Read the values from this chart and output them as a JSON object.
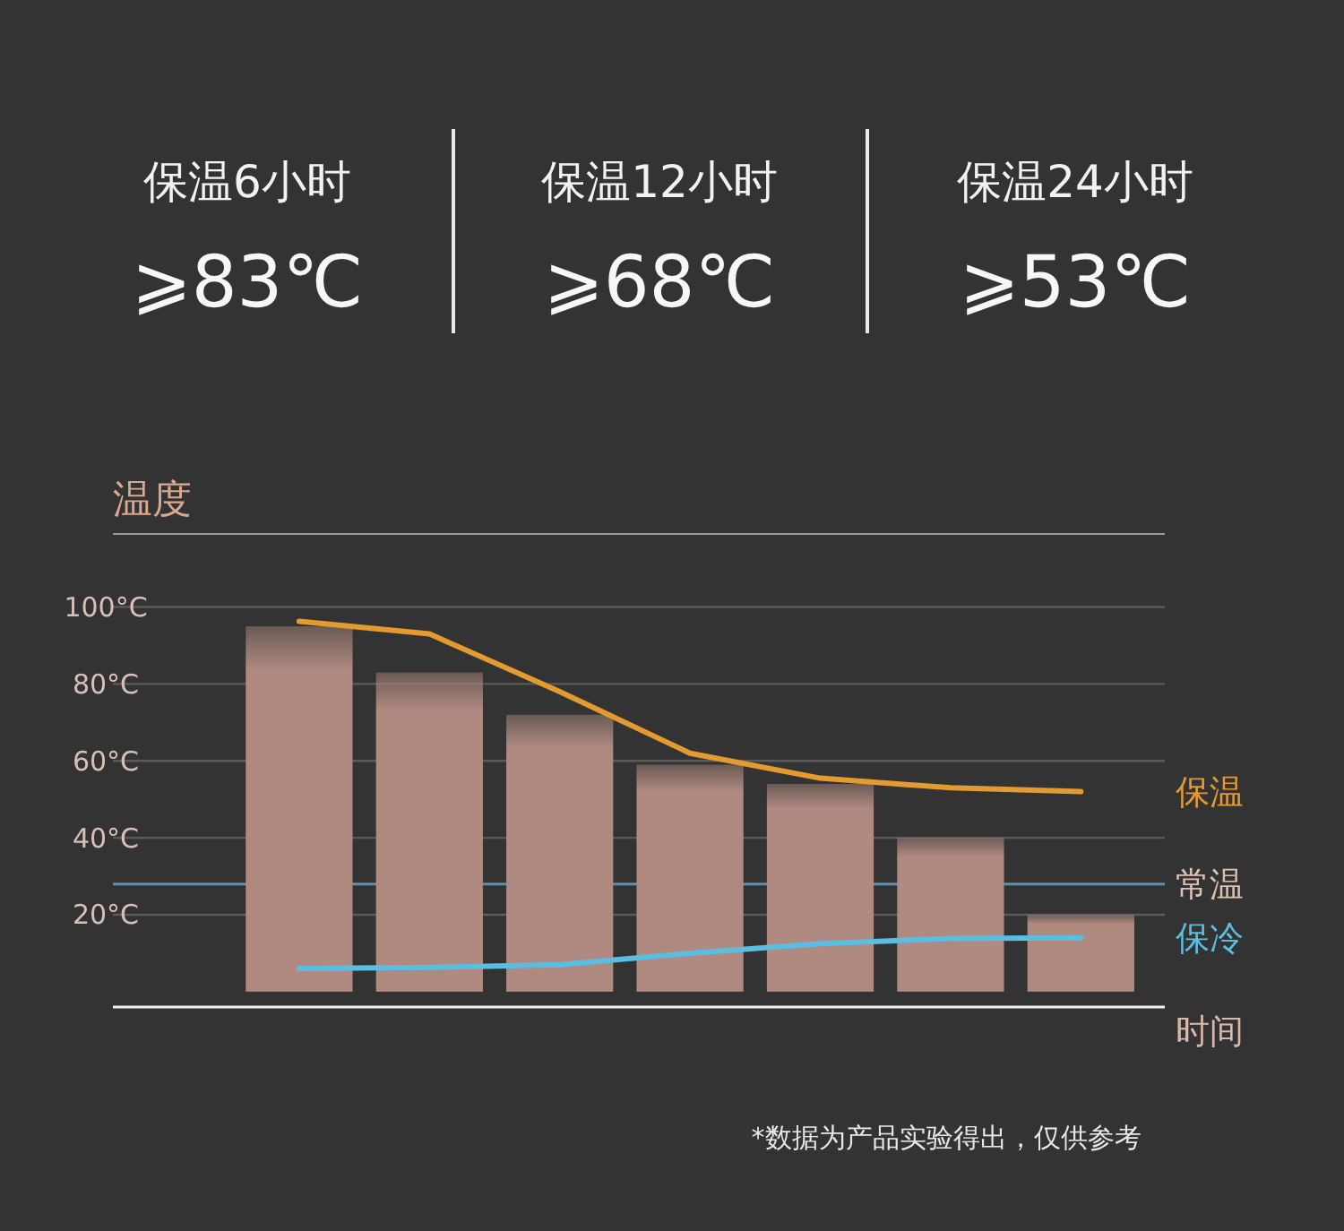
{
  "chart_data": {
    "type": "bar",
    "ylabel": "温度",
    "xlabel": "时间",
    "annotations": [
      "保温6小时",
      "⩾83℃",
      "保温12小时",
      "⩾68℃",
      "保温24小时",
      "⩾53℃",
      "*数据为产品实验得出，仅供参考"
    ],
    "categories": [
      null,
      null,
      null,
      null,
      null,
      null,
      null
    ],
    "ylim": [
      -4,
      119
    ],
    "yticks": [
      {
        "value": 20,
        "label": "20°C"
      },
      {
        "value": 40,
        "label": "40°C"
      },
      {
        "value": 60,
        "label": "60°C"
      },
      {
        "value": 80,
        "label": "80°C"
      },
      {
        "value": 100,
        "label": "100°C"
      }
    ],
    "tick_labels": "y",
    "grid": "y",
    "legend": "right",
    "series": [
      {
        "color": "#b08a80",
        "values": [
          95,
          83,
          72,
          59,
          54,
          40,
          20
        ]
      },
      {
        "type": "line",
        "name": "保温",
        "color": "#e39a30",
        "values": [
          96.3,
          93,
          78,
          62,
          55.5,
          53,
          52
        ]
      },
      {
        "type": "line",
        "name": "保冷",
        "color": "#5bbde0",
        "values": [
          6,
          6.3,
          7,
          10,
          12.5,
          13.8,
          14
        ]
      }
    ],
    "ref_lines": [
      {
        "axis": "y",
        "value": 28,
        "label": "常温",
        "color": "#5f8fae"
      }
    ]
  }
}
